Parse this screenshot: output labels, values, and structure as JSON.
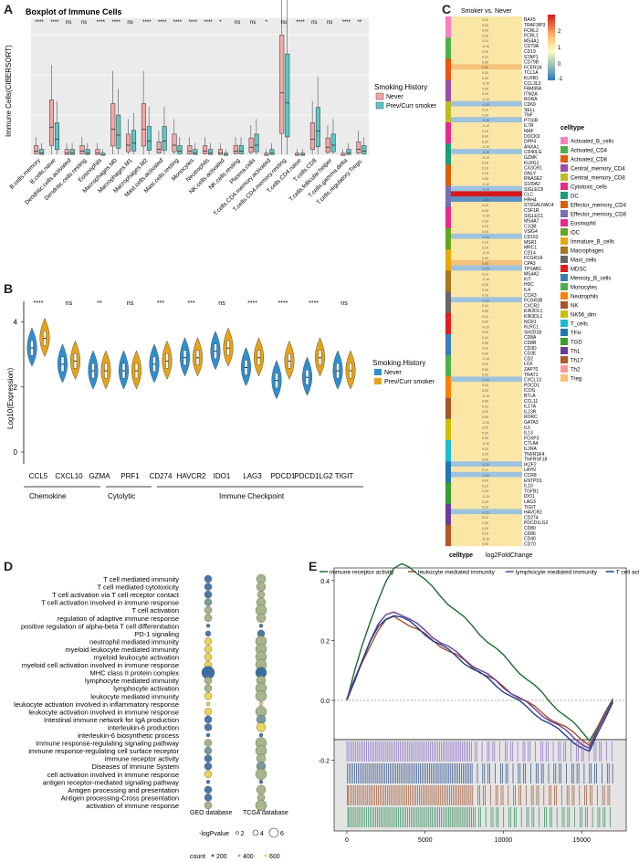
{
  "panels": {
    "a": "A",
    "b": "B",
    "c": "C",
    "d": "D",
    "e": "E"
  },
  "panel_a": {
    "title": "Boxplot of Immune Cells",
    "ylabel": "Immune Cells(CIBERSORT)",
    "legend_title": "Smoking.History",
    "legend": [
      "Never",
      "Prev/Curr smoker"
    ],
    "colors": {
      "never": "#F4A6A6",
      "smoker": "#5DC6C6"
    },
    "categories": [
      "B.cells.memory",
      "B.cells.naive",
      "Dendritic.cells.activated",
      "Dendritic.cells.resting",
      "Eosinophils",
      "Macrophages.M0",
      "Macrophages.M1",
      "Macrophages.M2",
      "Mast.cells.activated",
      "Mast.cells.resting",
      "Monocytes",
      "Neutrophils",
      "NK.cells.activated",
      "NK.cells.resting",
      "Plasma.cells",
      "T.cells.CD4.memory.activated",
      "T.cells.CD4.memory.resting",
      "T.cells.CD4.naive",
      "T.cells.CD8",
      "T.cells.follicular.helper",
      "T.cells.gamma.delta",
      "T.cells.regulatory.Tregs."
    ],
    "significance": [
      "****",
      "****",
      "ns",
      "ns",
      "****",
      "****",
      "ns",
      "****",
      "****",
      "****",
      "****",
      "****",
      "*",
      "ns",
      "ns",
      "*",
      "ns",
      "****",
      "ns",
      "ns",
      "****",
      "**"
    ],
    "medians_never": [
      0.02,
      0.14,
      0.01,
      0.02,
      0.01,
      0.13,
      0.05,
      0.13,
      0.03,
      0.05,
      0.02,
      0.02,
      0.01,
      0.02,
      0.04,
      0.0,
      0.31,
      0.0,
      0.08,
      0.04,
      0.0,
      0.03
    ],
    "medians_smoker": [
      0.01,
      0.08,
      0.01,
      0.01,
      0.0,
      0.1,
      0.06,
      0.07,
      0.07,
      0.02,
      0.01,
      0.01,
      0.0,
      0.02,
      0.05,
      0.01,
      0.26,
      0.0,
      0.12,
      0.05,
      0.01,
      0.02
    ]
  },
  "panel_b": {
    "ylabel": "Log10(Expression)",
    "legend_title": "Smoking.History",
    "legend": [
      "Never",
      "Prev/Curr smoker"
    ],
    "colors": {
      "never": "#2E8FD0",
      "smoker": "#E6A317"
    },
    "genes": [
      "CCL5",
      "CXCL10",
      "GZMA",
      "PRF1",
      "CD274",
      "HAVCR2",
      "IDO1",
      "LAG3",
      "PDCD1",
      "PDCD1LG2",
      "TIGIT"
    ],
    "significance": [
      "****",
      "ns",
      "**",
      "ns",
      "***",
      "***",
      "ns",
      "****",
      "****",
      "****",
      "ns"
    ],
    "medians_never": [
      3.2,
      2.7,
      2.5,
      2.5,
      2.7,
      2.9,
      3.1,
      2.6,
      2.2,
      2.3,
      2.5
    ],
    "medians_smoker": [
      3.5,
      2.8,
      2.5,
      2.5,
      2.8,
      2.9,
      3.2,
      2.9,
      2.8,
      2.9,
      2.5
    ],
    "yticks": [
      "0",
      "2",
      "4"
    ],
    "groups": [
      "Chemokine",
      "Cytolytic",
      "Immune Checkpoint"
    ]
  },
  "panel_c": {
    "title": "Smoker vs. Never",
    "xlabel": "log2FoldChange",
    "row_label": "celltype",
    "scale_ticks": [
      "2",
      "1",
      "0",
      "-1"
    ],
    "legend_title": "celltype",
    "celltypes": [
      "Activated_B_cells",
      "Activated_CD4",
      "Activated_CD8",
      "Central_memory_CD4",
      "Central_memory_CD8",
      "Cytotoxic_cells",
      "DC",
      "Effector_memory_CD4",
      "Effector_memory_CD8",
      "Eosinophil",
      "iDC",
      "Immature_B_cells",
      "Macrophages",
      "Mast_cells",
      "MDSC",
      "Memory_B_cells",
      "Monocytes",
      "Neutrophils",
      "NK",
      "NK56_dim",
      "T_cells",
      "TFH",
      "TGD",
      "Th1",
      "Th17",
      "Th2",
      "Treg"
    ],
    "celltype_colors": [
      "#F781BF",
      "#4DAF4A",
      "#E6550D",
      "#984EA3",
      "#BCBD22",
      "#E7298A",
      "#1B9E77",
      "#D95F02",
      "#7570B3",
      "#E7298A",
      "#66A61E",
      "#E6AB02",
      "#A6761D",
      "#666666",
      "#E41A1C",
      "#377EB8",
      "#4DAF4A",
      "#FF7F00",
      "#A65628",
      "#CDBE00",
      "#17BECF",
      "#1F78B4",
      "#33A02C",
      "#6A3D9A",
      "#B15928",
      "#FB9A99",
      "#FDBF6F"
    ],
    "genes": [
      "BAX5",
      "TRAF3IP3",
      "FCRL2",
      "FCRL1",
      "MS4A1",
      "CD79A",
      "CD19",
      "STAP1",
      "CD79B",
      "FCER2A",
      "TCL1A",
      "KLRB1",
      "CCL3L3",
      "FAM49A",
      "ITM2A",
      "RORA",
      "CD69",
      "SELL",
      "TNF",
      "PTGIR",
      "IL7R",
      "MAF",
      "DOCK9",
      "DPP4",
      "ANXA1",
      "CD40LG",
      "GZMK",
      "KLRG1",
      "CX3CR1",
      "GNLY",
      "RNASE2",
      "S100A2",
      "SIGLEC8",
      "CLC",
      "HRH4",
      "ST6GALNAC4",
      "CSF1R",
      "SIGLEC1",
      "MS4A7",
      "C1QB",
      "VSIG4",
      "CD163",
      "MSR1",
      "MRC1",
      "CD14",
      "FCGR1A",
      "CPA3",
      "TPSAB1",
      "MS4A2",
      "KIT",
      "HDC",
      "IL4",
      "CCR3",
      "FCGR3B",
      "CXCR2",
      "KIR2DL1",
      "KIR3DL1",
      "NCR1",
      "KLRC1",
      "SH2D1B",
      "CD8A",
      "CD8B",
      "CD3D",
      "CD3E",
      "CD2",
      "LCK",
      "ZAP70",
      "TRAT1",
      "CXCL13",
      "PDCD1",
      "ICOS",
      "BTLA",
      "CCL11",
      "IL17A",
      "IL23R",
      "RORC",
      "GATA3",
      "IL5",
      "IL13",
      "FOXP3",
      "CTLA4",
      "IL2RA",
      "TNFRSF4",
      "TNFRSF18",
      "IKZF2",
      "LAYN",
      "CCR8",
      "ENTPD1",
      "IL10",
      "TGFB1",
      "IDO1",
      "LAG3",
      "TIGIT",
      "HAVCR2",
      "CD274",
      "PDCD1LG2",
      "CD80",
      "CD86",
      "CD40",
      "CD70"
    ],
    "values": [
      0.2,
      0.1,
      0.2,
      0.3,
      0.1,
      -0.1,
      0.2,
      0.1,
      0.3,
      0.5,
      0.2,
      0.0,
      -0.1,
      0.0,
      0.1,
      -0.1,
      -0.2,
      0.1,
      0.0,
      -0.2,
      -0.1,
      0.1,
      0.0,
      0.2,
      -0.1,
      -0.2,
      -0.1,
      0.0,
      0.1,
      0.2,
      0.0,
      -0.1,
      -0.2,
      2.8,
      -1.0,
      0.1,
      0.0,
      -0.1,
      0.2,
      0.1,
      0.0,
      -0.2,
      0.1,
      0.2,
      -0.1,
      0.0,
      0.6,
      -0.2,
      0.1,
      -0.1,
      0.2,
      0.0,
      0.1,
      -0.2,
      0.1,
      0.0,
      0.1,
      0.2,
      -0.1,
      0.0,
      0.1,
      0.3,
      0.1,
      0.0,
      -0.1,
      0.2,
      0.0,
      0.1,
      -0.2,
      0.1,
      0.2,
      -0.1,
      0.0,
      0.1,
      0.2,
      0.0,
      -0.1,
      0.2,
      0.1,
      0.0,
      -0.1,
      0.1,
      0.2,
      0.0,
      -0.2,
      0.1,
      -0.3,
      0.0,
      0.1,
      0.2,
      -0.1,
      0.0,
      0.1,
      -0.2,
      0.1,
      0.0,
      0.2,
      0.1,
      -0.1,
      0.0
    ]
  },
  "panel_d": {
    "terms": [
      "T cell mediated immunity",
      "T cell mediated cytotoxicity",
      "T cell activation via T cell receptor contact",
      "T cell activation involved in immune response",
      "T cell activation",
      "regulation of adaptive immune response",
      "positive regulation of alpha-beta T cell differentiation",
      "PD-1 signaling",
      "neutrophil mediated immunity",
      "myeloid leukocyte mediated immunity",
      "myeloid leukocyte activation",
      "myeloid cell activation involved in immune response",
      "MHC class II protein complex",
      "lymphocyte mediated immunity",
      "lymphocyte activation",
      "leukocyte mediated immunity",
      "leukocyte activation involved in inflammatory response",
      "leukocyte activation involved in immune response",
      "Intestinal immune network for IgA production",
      "interleukin-6 production",
      "interleukin-6 biosynthetic process",
      "immune response-regulating signaling pathway",
      "immune response-regulating cell surface receptor",
      "immune receptor activity",
      "Diseases of Immune System",
      "cell activation involved in immune response",
      "antigen receptor-mediated signaling pathway",
      "Antigen processing and presentation",
      "Antigen processing-Cross presentation",
      "activation of immune response"
    ],
    "columns": [
      "GEO database",
      "TCGA database"
    ],
    "geo_size": [
      4,
      4,
      4,
      4,
      4,
      4,
      2,
      3,
      4,
      4,
      4,
      4,
      7,
      4,
      4,
      4,
      2,
      4,
      4,
      4,
      2,
      4,
      4,
      4,
      4,
      4,
      2,
      4,
      4,
      4
    ],
    "geo_color": [
      "#4A78A8",
      "#4A78A8",
      "#4A78A8",
      "#7A9A9A",
      "#A8B58A",
      "#A8B58A",
      "#4A78A8",
      "#4A78A8",
      "#E8D55A",
      "#E8D55A",
      "#E8D55A",
      "#E8D55A",
      "#3A6EA0",
      "#A8B58A",
      "#A8B58A",
      "#E8D55A",
      "#E8D55A",
      "#E8D55A",
      "#4A78A8",
      "#4A78A8",
      "#4A78A8",
      "#A8B58A",
      "#7A9A9A",
      "#4A78A8",
      "#4A78A8",
      "#E8D55A",
      "#4A78A8",
      "#4A78A8",
      "#4A78A8",
      "#A8B58A"
    ],
    "tcga_size": [
      5,
      5,
      4,
      5,
      6,
      5,
      2,
      4,
      6,
      6,
      6,
      6,
      6,
      5,
      6,
      6,
      2,
      6,
      5,
      5,
      2,
      6,
      6,
      5,
      5,
      6,
      2,
      5,
      4,
      6
    ],
    "tcga_color": [
      "#A8B58A",
      "#A8B58A",
      "#A8B58A",
      "#A8B58A",
      "#A8B58A",
      "#A8B58A",
      "#4A78A8",
      "#4A78A8",
      "#A8B58A",
      "#A8B58A",
      "#A8B58A",
      "#A8B58A",
      "#3A6EA0",
      "#A8B58A",
      "#A8B58A",
      "#A8B58A",
      "#E8D55A",
      "#A8B58A",
      "#7A9A9A",
      "#E8D55A",
      "#4A78A8",
      "#A8B58A",
      "#A8B58A",
      "#A8B58A",
      "#7A9A9A",
      "#A8B58A",
      "#4A78A8",
      "#A8B58A",
      "#A8B58A",
      "#A8B58A"
    ],
    "logp_title": "-logPvalue",
    "logp_values": [
      "2",
      "4",
      "6"
    ],
    "count_title": "count",
    "count_values": [
      "200",
      "400",
      "600"
    ]
  },
  "panel_e": {
    "legend": [
      "immune receptor activity",
      "leukocyte mediated immunity",
      "lymphocyte mediated immunity",
      "T cell activation"
    ],
    "colors": [
      "#1E6B2E",
      "#A0522D",
      "#6A3D9A",
      "#1F3E8A"
    ],
    "yticks": [
      "0.4",
      "0.2",
      "0.0",
      "-0.2"
    ],
    "xticks": [
      "0",
      "5000",
      "10000",
      "15000"
    ],
    "peaks": [
      0.46,
      0.28,
      0.3,
      0.29
    ]
  }
}
